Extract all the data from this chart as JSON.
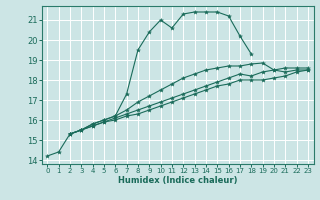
{
  "xlabel": "Humidex (Indice chaleur)",
  "bg_color": "#cce5e5",
  "grid_color": "#ffffff",
  "line_color": "#1a6b5a",
  "xlim": [
    -0.5,
    23.5
  ],
  "ylim": [
    13.8,
    21.7
  ],
  "yticks": [
    14,
    15,
    16,
    17,
    18,
    19,
    20,
    21
  ],
  "xticks": [
    0,
    1,
    2,
    3,
    4,
    5,
    6,
    7,
    8,
    9,
    10,
    11,
    12,
    13,
    14,
    15,
    16,
    17,
    18,
    19,
    20,
    21,
    22,
    23
  ],
  "series": [
    {
      "x": [
        0,
        1,
        2,
        3,
        4,
        5,
        6,
        7,
        8,
        9,
        10,
        11,
        12,
        13,
        14,
        15,
        16,
        17,
        18
      ],
      "y": [
        14.2,
        14.4,
        15.3,
        15.5,
        15.8,
        16.0,
        16.2,
        17.3,
        19.5,
        20.4,
        21.0,
        20.6,
        21.3,
        21.4,
        21.4,
        21.4,
        21.2,
        20.2,
        19.3
      ]
    },
    {
      "x": [
        2,
        3,
        4,
        5,
        6,
        7,
        8,
        9,
        10,
        11,
        12,
        13,
        14,
        15,
        16,
        17,
        18,
        19,
        20,
        21,
        22,
        23
      ],
      "y": [
        15.3,
        15.5,
        15.8,
        16.0,
        16.2,
        16.5,
        16.9,
        17.2,
        17.5,
        17.8,
        18.1,
        18.3,
        18.5,
        18.6,
        18.7,
        18.7,
        18.8,
        18.85,
        18.5,
        18.6,
        18.6,
        18.6
      ]
    },
    {
      "x": [
        2,
        3,
        4,
        5,
        6,
        7,
        8,
        9,
        10,
        11,
        12,
        13,
        14,
        15,
        16,
        17,
        18,
        19,
        20,
        21,
        22,
        23
      ],
      "y": [
        15.3,
        15.5,
        15.7,
        15.9,
        16.1,
        16.3,
        16.5,
        16.7,
        16.9,
        17.1,
        17.3,
        17.5,
        17.7,
        17.9,
        18.1,
        18.3,
        18.2,
        18.4,
        18.5,
        18.4,
        18.5,
        18.5
      ]
    },
    {
      "x": [
        2,
        3,
        4,
        5,
        6,
        7,
        8,
        9,
        10,
        11,
        12,
        13,
        14,
        15,
        16,
        17,
        18,
        19,
        20,
        21,
        22,
        23
      ],
      "y": [
        15.3,
        15.5,
        15.7,
        15.9,
        16.0,
        16.2,
        16.3,
        16.5,
        16.7,
        16.9,
        17.1,
        17.3,
        17.5,
        17.7,
        17.8,
        18.0,
        18.0,
        18.0,
        18.1,
        18.2,
        18.4,
        18.5
      ]
    }
  ]
}
